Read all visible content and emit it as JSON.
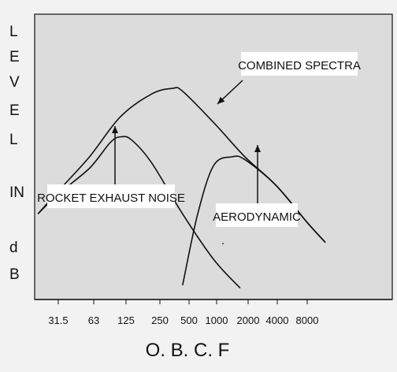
{
  "chart_data": {
    "type": "line",
    "title": "",
    "ylabel": [
      "L",
      "E",
      "V",
      "E",
      "L",
      "IN",
      "d",
      "B"
    ],
    "xlabel": "O. B. C. F",
    "x_ticks": [
      "31.5",
      "63",
      "125",
      "250",
      "500",
      "1000",
      "2000",
      "4000",
      "8000"
    ],
    "x_scale": "log",
    "grid": false,
    "series": [
      {
        "name": "COMBINED SPECTRA",
        "x": [
          20,
          31.5,
          63,
          125,
          250,
          400,
          500,
          1000,
          2000,
          4000,
          8000,
          12000
        ],
        "y": [
          0.3,
          0.38,
          0.5,
          0.64,
          0.72,
          0.74,
          0.73,
          0.62,
          0.5,
          0.4,
          0.27,
          0.2
        ]
      },
      {
        "name": "ROCKET EXHAUST NOISE",
        "x": [
          20,
          31.5,
          63,
          100,
          125,
          160,
          250,
          500,
          1000,
          1800
        ],
        "y": [
          0.3,
          0.37,
          0.46,
          0.55,
          0.57,
          0.56,
          0.48,
          0.3,
          0.14,
          0.04
        ]
      },
      {
        "name": "AERODYNAMIC",
        "x": [
          500,
          700,
          1000,
          1500,
          2000,
          4000,
          8000,
          12000
        ],
        "y": [
          0.05,
          0.3,
          0.47,
          0.5,
          0.49,
          0.4,
          0.27,
          0.2
        ]
      }
    ],
    "annotations": [
      {
        "text": "COMBINED SPECTRA",
        "target": "COMBINED SPECTRA"
      },
      {
        "text": "ROCKET EXHAUST NOISE",
        "target": "ROCKET EXHAUST NOISE"
      },
      {
        "text": "AERODYNAMIC",
        "target": "AERODYNAMIC"
      }
    ]
  }
}
